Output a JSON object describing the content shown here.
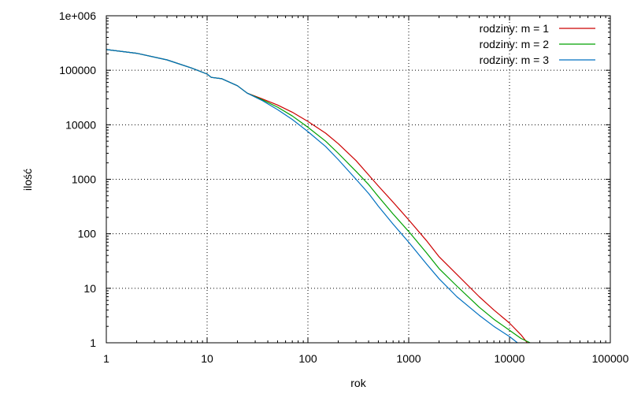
{
  "chart_data": {
    "type": "line",
    "title": "",
    "xlabel": "rok",
    "ylabel": "ilość",
    "xscale": "log",
    "yscale": "log",
    "xlim": [
      1,
      100000
    ],
    "ylim": [
      1,
      1000000
    ],
    "grid": true,
    "legend_position": "top-right",
    "xticks": [
      1,
      10,
      100,
      1000,
      10000,
      100000
    ],
    "xtick_labels": [
      "1",
      "10",
      "100",
      "1000",
      "10000",
      "100000"
    ],
    "yticks": [
      1,
      10,
      100,
      1000,
      10000,
      100000,
      1000000
    ],
    "ytick_labels": [
      "1",
      "10",
      "100",
      "1000",
      "10000",
      "100000",
      "1e+006"
    ],
    "series": [
      {
        "name": "rodziny: m = 1",
        "color": "#cc0000",
        "points": [
          [
            1,
            240000
          ],
          [
            2,
            205000
          ],
          [
            4,
            155000
          ],
          [
            7,
            110000
          ],
          [
            10,
            85000
          ],
          [
            11,
            74000
          ],
          [
            14,
            70000
          ],
          [
            20,
            52000
          ],
          [
            25,
            38000
          ],
          [
            35,
            30000
          ],
          [
            50,
            23000
          ],
          [
            70,
            17000
          ],
          [
            100,
            11500
          ],
          [
            150,
            7000
          ],
          [
            200,
            4500
          ],
          [
            300,
            2200
          ],
          [
            400,
            1200
          ],
          [
            500,
            750
          ],
          [
            700,
            380
          ],
          [
            1000,
            180
          ],
          [
            1500,
            75
          ],
          [
            2000,
            38
          ],
          [
            3000,
            18
          ],
          [
            5000,
            7
          ],
          [
            7000,
            4
          ],
          [
            10000,
            2.3
          ],
          [
            13000,
            1.4
          ],
          [
            15000,
            1
          ]
        ]
      },
      {
        "name": "rodziny: m = 2",
        "color": "#00a000",
        "points": [
          [
            1,
            240000
          ],
          [
            2,
            205000
          ],
          [
            4,
            155000
          ],
          [
            7,
            110000
          ],
          [
            10,
            85000
          ],
          [
            11,
            74000
          ],
          [
            14,
            70000
          ],
          [
            20,
            52000
          ],
          [
            25,
            38000
          ],
          [
            35,
            29000
          ],
          [
            50,
            21000
          ],
          [
            70,
            14500
          ],
          [
            100,
            9000
          ],
          [
            150,
            5000
          ],
          [
            200,
            3000
          ],
          [
            300,
            1400
          ],
          [
            400,
            800
          ],
          [
            500,
            480
          ],
          [
            700,
            230
          ],
          [
            1000,
            110
          ],
          [
            1500,
            45
          ],
          [
            2000,
            23
          ],
          [
            3000,
            11
          ],
          [
            5000,
            4.5
          ],
          [
            7000,
            2.7
          ],
          [
            10000,
            1.7
          ],
          [
            13000,
            1.2
          ],
          [
            16000,
            1
          ]
        ]
      },
      {
        "name": "rodziny: m = 3",
        "color": "#0070c0",
        "points": [
          [
            1,
            240000
          ],
          [
            2,
            205000
          ],
          [
            4,
            155000
          ],
          [
            7,
            110000
          ],
          [
            10,
            85000
          ],
          [
            11,
            74000
          ],
          [
            14,
            70000
          ],
          [
            20,
            52000
          ],
          [
            25,
            38000
          ],
          [
            35,
            28000
          ],
          [
            50,
            19000
          ],
          [
            70,
            12500
          ],
          [
            100,
            7500
          ],
          [
            150,
            4000
          ],
          [
            200,
            2300
          ],
          [
            300,
            1000
          ],
          [
            400,
            550
          ],
          [
            500,
            320
          ],
          [
            700,
            150
          ],
          [
            1000,
            70
          ],
          [
            1500,
            28
          ],
          [
            2000,
            15
          ],
          [
            3000,
            7
          ],
          [
            5000,
            3.2
          ],
          [
            7000,
            2
          ],
          [
            10000,
            1.3
          ],
          [
            12000,
            1
          ]
        ]
      }
    ]
  }
}
